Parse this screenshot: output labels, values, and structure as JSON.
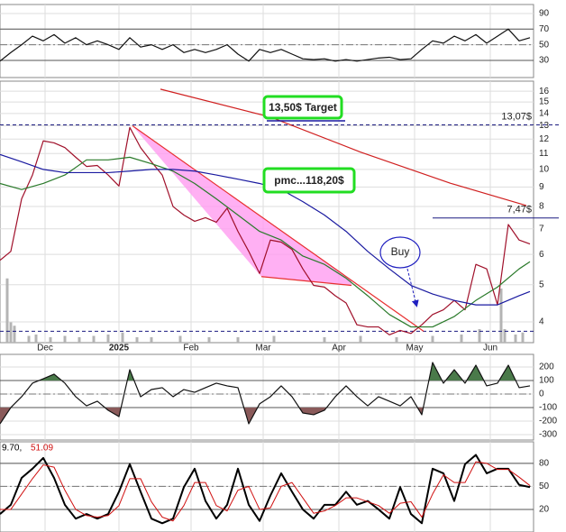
{
  "chart_data": [
    {
      "type": "line",
      "xlim": [
        0,
        148
      ],
      "ylim": [
        8,
        101.5
      ],
      "yticks": [
        90,
        70,
        50,
        30
      ],
      "ref_lines": [
        70,
        30
      ],
      "mid_line": 50,
      "x": [
        0,
        3,
        6,
        9,
        12,
        15,
        18,
        21,
        24,
        27,
        30,
        33,
        36,
        39,
        42,
        45,
        48,
        51,
        54,
        57,
        60,
        63,
        66,
        69,
        72,
        75,
        78,
        81,
        84,
        87,
        90,
        93,
        96,
        99,
        102,
        105,
        108,
        111,
        114,
        117,
        120,
        123,
        126,
        129,
        132,
        135,
        138,
        141,
        144,
        147
      ],
      "series": [
        {
          "color": "#111111",
          "values": [
            29,
            40,
            50,
            61,
            55,
            63,
            52,
            59,
            50,
            55,
            50,
            44,
            59,
            47,
            50,
            44,
            50,
            40,
            44,
            40,
            44,
            50,
            38,
            29,
            44,
            40,
            44,
            38,
            32,
            31,
            32,
            29,
            31,
            29,
            31,
            33,
            34,
            31,
            32,
            44,
            55,
            52,
            61,
            55,
            63,
            52,
            61,
            70,
            55,
            59
          ]
        }
      ]
    },
    {
      "type": "line",
      "log_scale": true,
      "xlim": [
        0,
        148
      ],
      "ylim": [
        3.53,
        17
      ],
      "yticks": [
        16,
        15,
        14,
        13,
        12,
        11,
        10,
        9,
        8,
        7,
        6,
        5,
        4
      ],
      "xticks": [
        {
          "value": 12.5,
          "label": "Dec"
        },
        {
          "value": 33,
          "label": "2025",
          "bold": true
        },
        {
          "value": 53,
          "label": "Feb"
        },
        {
          "value": 73,
          "label": "Mar"
        },
        {
          "value": 94,
          "label": "Apr"
        },
        {
          "value": 115,
          "label": "May"
        },
        {
          "value": 136,
          "label": "Jun"
        }
      ],
      "annotations": [
        "13,50$ Target",
        "pmc...118,20$",
        "Buy"
      ],
      "hlines": [
        {
          "value": 13.07,
          "label": "13,07$",
          "color": "#1a1a80",
          "dashed": true
        },
        {
          "value": 7.47,
          "label": "7,47$",
          "color": "#1a1a80",
          "x_from": 120
        }
      ],
      "dashed_level": 3.78,
      "trendlines": [
        {
          "x": [
            36.75,
            117.5
          ],
          "values": [
            13,
            3.78
          ],
          "color": "#e83030"
        },
        {
          "x": [
            72.5,
            97.5
          ],
          "values": [
            5.25,
            4.98
          ],
          "color": "#e83030"
        }
      ],
      "wedge_color": "#ff9cf0",
      "volume": {
        "x": [
          2,
          3,
          4,
          8,
          10,
          14,
          18,
          22,
          26,
          30,
          34,
          38,
          42,
          50,
          58,
          66,
          76,
          90,
          100,
          110,
          120,
          128,
          133,
          139,
          140,
          143,
          145
        ],
        "values": [
          95,
          30,
          25,
          10,
          12,
          8,
          10,
          8,
          10,
          12,
          15,
          8,
          8,
          10,
          8,
          8,
          10,
          8,
          10,
          8,
          10,
          12,
          20,
          80,
          20,
          12,
          15
        ],
        "ylim": [
          0,
          100
        ],
        "color": "#b4b4b4"
      },
      "x": [
        0,
        3,
        6,
        9,
        12,
        15,
        18,
        21,
        24,
        27,
        30,
        33,
        36,
        39,
        42,
        45,
        48,
        51,
        54,
        57,
        60,
        63,
        66,
        69,
        72,
        75,
        78,
        81,
        84,
        87,
        90,
        93,
        96,
        99,
        102,
        105,
        108,
        111,
        114,
        117,
        120,
        123,
        126,
        129,
        132,
        135,
        138,
        141,
        144,
        147
      ],
      "series": [
        {
          "color": "#a0102a",
          "values": [
            5.79,
            6.11,
            8.38,
            9.67,
            11.87,
            11.73,
            11.4,
            10.76,
            10.18,
            10.24,
            9.67,
            9.05,
            12.87,
            11.4,
            10.47,
            9.67,
            8.0,
            7.6,
            7.32,
            7.48,
            7.28,
            7.92,
            6.89,
            6.11,
            5.35,
            6.54,
            6.46,
            6.18,
            5.5,
            4.98,
            4.93,
            4.68,
            4.48,
            3.93,
            3.88,
            3.88,
            3.7,
            3.8,
            3.73,
            3.93,
            4.18,
            4.3,
            4.55,
            4.3,
            5.65,
            5.5,
            4.43,
            7.18,
            6.54,
            6.39
          ]
        },
        {
          "color": "#2a7a2a",
          "x": [
            0,
            6,
            12,
            18,
            24,
            30,
            36,
            42,
            48,
            54,
            60,
            66,
            72,
            78,
            84,
            90,
            96,
            102,
            108,
            114,
            120,
            126,
            132,
            138,
            144,
            147
          ],
          "values": [
            9.19,
            8.86,
            9.19,
            9.67,
            10.59,
            10.59,
            10.76,
            10.35,
            9.9,
            9.19,
            8.38,
            7.6,
            6.89,
            6.54,
            5.94,
            5.65,
            5.2,
            4.68,
            4.18,
            3.88,
            3.88,
            4.13,
            4.55,
            4.93,
            5.5,
            5.74
          ]
        },
        {
          "color": "#1a1aa0",
          "x": [
            0,
            6,
            12,
            18,
            24,
            30,
            36,
            42,
            48,
            54,
            60,
            66,
            72,
            78,
            84,
            90,
            96,
            102,
            108,
            114,
            120,
            126,
            132,
            138,
            144,
            147
          ],
          "values": [
            10.94,
            10.47,
            10,
            9.81,
            9.81,
            9.81,
            9.9,
            10,
            10,
            9.9,
            9.67,
            9.43,
            9.19,
            8.86,
            8.24,
            7.6,
            6.89,
            6.11,
            5.5,
            4.98,
            4.73,
            4.55,
            4.43,
            4.43,
            4.68,
            4.8
          ]
        },
        {
          "color": "#d02020",
          "x": [
            44.5,
            75,
            100,
            125,
            146
          ],
          "values": [
            16.2,
            13.7,
            11.1,
            9.2,
            8.05
          ]
        }
      ]
    },
    {
      "type": "line",
      "xlim": [
        0,
        148
      ],
      "ylim": [
        -340,
        293
      ],
      "yticks": [
        200,
        100,
        0,
        -100,
        -200,
        -300
      ],
      "ref_lines": [
        100,
        -100
      ],
      "mid_line": 0,
      "fill_above": {
        "value": 100,
        "color": "#4a7a4a"
      },
      "fill_below": {
        "value": -100,
        "color": "#8a5a5a"
      },
      "x": [
        0,
        3,
        6,
        9,
        12,
        15,
        18,
        21,
        24,
        27,
        30,
        33,
        36,
        39,
        42,
        45,
        48,
        51,
        54,
        57,
        60,
        63,
        66,
        69,
        72,
        75,
        78,
        81,
        84,
        87,
        90,
        93,
        96,
        99,
        102,
        105,
        108,
        111,
        114,
        117,
        120,
        123,
        126,
        129,
        132,
        135,
        138,
        141,
        144,
        147
      ],
      "series": [
        {
          "color": "#111111",
          "values": [
            -220,
            -100,
            -20,
            80,
            113,
            147,
            80,
            -20,
            -87,
            -53,
            -120,
            -167,
            180,
            -20,
            33,
            47,
            -20,
            33,
            13,
            47,
            80,
            60,
            47,
            -220,
            -73,
            -20,
            60,
            -20,
            -140,
            -153,
            -120,
            -20,
            60,
            -20,
            -87,
            -20,
            -53,
            -87,
            -20,
            -153,
            233,
            80,
            180,
            80,
            213,
            60,
            80,
            213,
            47,
            60
          ]
        }
      ]
    },
    {
      "type": "line",
      "xlim": [
        0,
        148
      ],
      "ylim": [
        -9.4,
        108
      ],
      "yticks": [
        80,
        50,
        20
      ],
      "ref_lines": [
        80,
        20
      ],
      "mid_line": 50,
      "x": [
        0,
        3,
        6,
        9,
        12,
        15,
        18,
        21,
        24,
        27,
        30,
        33,
        36,
        39,
        42,
        45,
        48,
        51,
        54,
        57,
        60,
        63,
        66,
        69,
        72,
        75,
        78,
        81,
        84,
        87,
        90,
        93,
        96,
        99,
        102,
        105,
        108,
        111,
        114,
        117,
        120,
        123,
        126,
        129,
        132,
        135,
        138,
        141,
        144,
        147
      ],
      "series": [
        {
          "label": "9.70,",
          "color": "#000000",
          "width": 2,
          "values": [
            14,
            26,
            61,
            73,
            87,
            61,
            26,
            8,
            14,
            8,
            14,
            43,
            79,
            43,
            8,
            2,
            8,
            49,
            73,
            31,
            8,
            26,
            73,
            26,
            5,
            38,
            67,
            43,
            20,
            8,
            26,
            26,
            43,
            26,
            31,
            20,
            8,
            49,
            14,
            2,
            73,
            67,
            31,
            79,
            91,
            67,
            73,
            73,
            52,
            49
          ]
        },
        {
          "label": "51.09",
          "color": "#d01010",
          "width": 1,
          "values": [
            20,
            20,
            40,
            60,
            78,
            75,
            45,
            20,
            12,
            10,
            12,
            25,
            60,
            60,
            30,
            10,
            5,
            25,
            55,
            55,
            25,
            18,
            45,
            50,
            20,
            22,
            50,
            55,
            35,
            15,
            18,
            25,
            35,
            35,
            30,
            25,
            15,
            28,
            30,
            10,
            40,
            65,
            55,
            55,
            82,
            80,
            72,
            72,
            62,
            51
          ]
        }
      ]
    }
  ]
}
